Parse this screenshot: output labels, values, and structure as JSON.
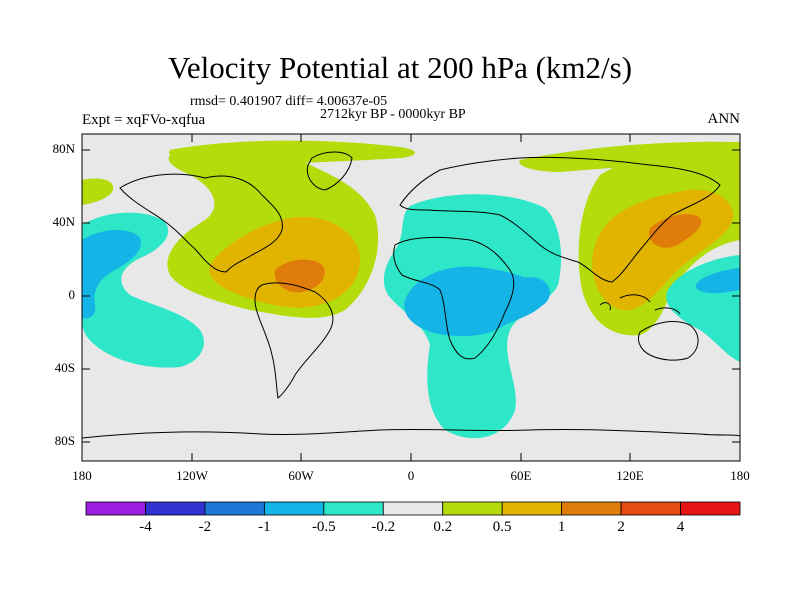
{
  "title": "Velocity Potential at 200 hPa (km2/s)",
  "stats": "rmsd= 0.401907 diff= 4.00637e-05",
  "period": "2712kyr BP - 0000kyr BP",
  "experiment": "Expt = xqFVo-xqfua",
  "season": "ANN",
  "y_ticks": [
    "80N",
    "40N",
    "0",
    "40S",
    "80S"
  ],
  "x_ticks": [
    "180",
    "120W",
    "60W",
    "0",
    "60E",
    "120E",
    "180"
  ],
  "colorbar": {
    "labels": [
      "-4",
      "-2",
      "-1",
      "-0.5",
      "-0.2",
      "0.2",
      "0.5",
      "1",
      "2",
      "4"
    ],
    "colors": [
      "#9a1fe0",
      "#3232d2",
      "#1e78d8",
      "#14b4e6",
      "#2ee6c8",
      "#e8e8e8",
      "#b4dc0a",
      "#e0b400",
      "#e07d0a",
      "#e64b14",
      "#e61414"
    ]
  },
  "field_colors": {
    "background": "#e8e8e8",
    "neg_02": "#2ee6c8",
    "neg_05": "#14b4e6",
    "pos_02": "#b4dc0a",
    "pos_05": "#e0b400",
    "pos_1": "#e07d0a"
  }
}
